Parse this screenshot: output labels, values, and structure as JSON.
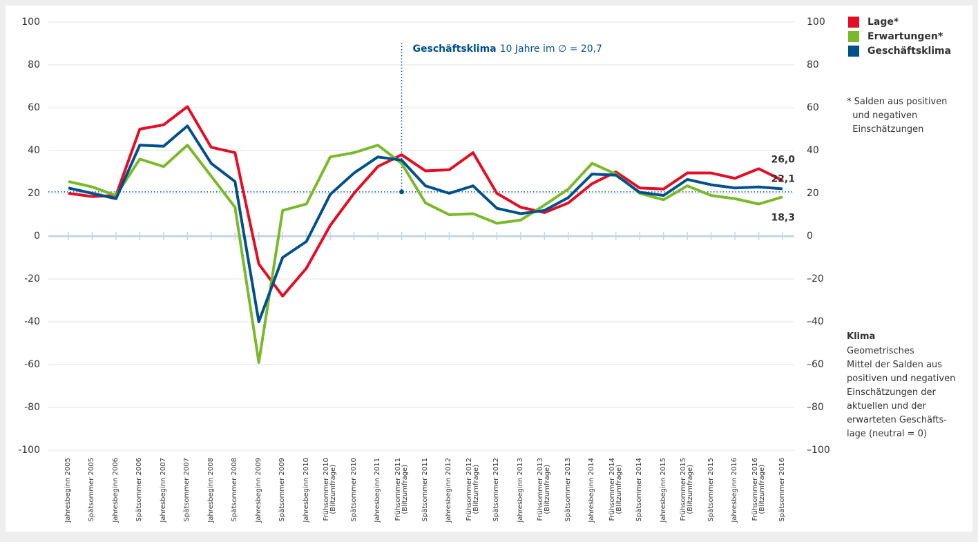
{
  "chart_data": {
    "type": "line",
    "categories": [
      "Jahresbeginn 2005",
      "Spätsommer 2005",
      "Jahresbeginn 2006",
      "Spätsommer 2006",
      "Jahresbeginn 2007",
      "Spätsommer 2007",
      "Jahresbeginn 2008",
      "Spätsommer 2008",
      "Jahresbeginn 2009",
      "Spätsommer 2009",
      "Jahresbeginn 2010",
      "Frühsommer 2010\n(Blitzumfrage)",
      "Spätsommer 2010",
      "Jahresbeginn 2011",
      "Frühsommer 2011\n(Blitzumfrage)",
      "Spätsommer 2011",
      "Jahresbeginn 2012",
      "Frühsommer 2012\n(Blitzumfrage)",
      "Spätsommer 2012",
      "Jahresbeginn 2013",
      "Frühsommer 2013\n(Blitzumfrage)",
      "Spätsommer 2013",
      "Jahresbeginn 2014",
      "Frühsommer 2014\n(Blitzumfrage)",
      "Spätsommer 2014",
      "Jahresbeginn 2015",
      "Frühsommer 2015\n(Blitzumfrage)",
      "Spätsommer 2015",
      "Jahresbeginn 2016",
      "Frühsommer 2016\n(Blitzumfrage)",
      "Spätsommer 2016"
    ],
    "series": [
      {
        "name": "Lage*",
        "color": "#e30d24",
        "values": [
          20,
          18.5,
          19,
          50,
          52,
          60.5,
          41.5,
          39,
          -13,
          -28,
          -15,
          5,
          20,
          32.5,
          38,
          30.5,
          31,
          39,
          20,
          13.5,
          11,
          15.5,
          24.5,
          30,
          22.5,
          22,
          29.5,
          29.5,
          27,
          31.5,
          26.0
        ],
        "value_labels": [
          null,
          null,
          null,
          null,
          null,
          null,
          null,
          null,
          null,
          null,
          null,
          null,
          null,
          null,
          null,
          null,
          null,
          null,
          null,
          null,
          null,
          null,
          null,
          null,
          null,
          null,
          null,
          null,
          null,
          null,
          "26,0"
        ]
      },
      {
        "name": "Erwartungen*",
        "color": "#7ab929",
        "values": [
          25.5,
          23,
          19,
          36,
          32.5,
          42.5,
          28,
          13.5,
          -59,
          12,
          15,
          37,
          39,
          42.5,
          34,
          15.5,
          10,
          10.5,
          6,
          7.5,
          14.5,
          22,
          34,
          29,
          20,
          17,
          23.5,
          19,
          17.5,
          15,
          18.3
        ],
        "value_labels": [
          null,
          null,
          null,
          null,
          null,
          null,
          null,
          null,
          null,
          null,
          null,
          null,
          null,
          null,
          null,
          null,
          null,
          null,
          null,
          null,
          null,
          null,
          null,
          null,
          null,
          null,
          null,
          null,
          null,
          null,
          "18,3"
        ]
      },
      {
        "name": "Geschäftsklima",
        "color": "#00508c",
        "values": [
          22.5,
          20,
          17.5,
          42.5,
          42,
          51.5,
          34,
          25.5,
          -40,
          -10,
          -2.5,
          19.5,
          29.5,
          37,
          35.5,
          23.5,
          20,
          23.5,
          13,
          10.5,
          12,
          18,
          29,
          28.5,
          20.5,
          19,
          26.5,
          24,
          22.5,
          23,
          22.1
        ],
        "value_labels": [
          null,
          null,
          null,
          null,
          null,
          null,
          null,
          null,
          null,
          null,
          null,
          null,
          null,
          null,
          null,
          null,
          null,
          null,
          null,
          null,
          null,
          null,
          null,
          null,
          null,
          null,
          null,
          null,
          null,
          null,
          "22,1"
        ]
      }
    ],
    "ylim": [
      -100,
      100
    ],
    "yticks": [
      -100,
      -80,
      -60,
      -40,
      -20,
      0,
      20,
      40,
      60,
      80,
      100
    ],
    "y2lim": [
      -100,
      100
    ],
    "y2ticks": [
      {
        "value": -100,
        "label": "–100"
      },
      {
        "value": -80,
        "label": "–80"
      },
      {
        "value": -60,
        "label": "–60"
      },
      {
        "value": -40,
        "label": "–40"
      },
      {
        "value": -20,
        "label": "–20"
      },
      0,
      20,
      40,
      60,
      80,
      100
    ],
    "grid": true,
    "average": {
      "title": "Geschäftsklima",
      "text": "10 Jahre im ∅ = 20,7",
      "value": 20.7,
      "color": "#00508c"
    },
    "footnote": "* Salden aus positiven\n  und negativen\n  Einschätzungen",
    "note": {
      "title": "Klima",
      "text": "Geometrisches\nMittel der Salden aus\npositiven und negativen\nEinschätzungen der\naktuellen und der\nerwarteten Geschäfts-\nlage (neutral = 0)"
    }
  }
}
